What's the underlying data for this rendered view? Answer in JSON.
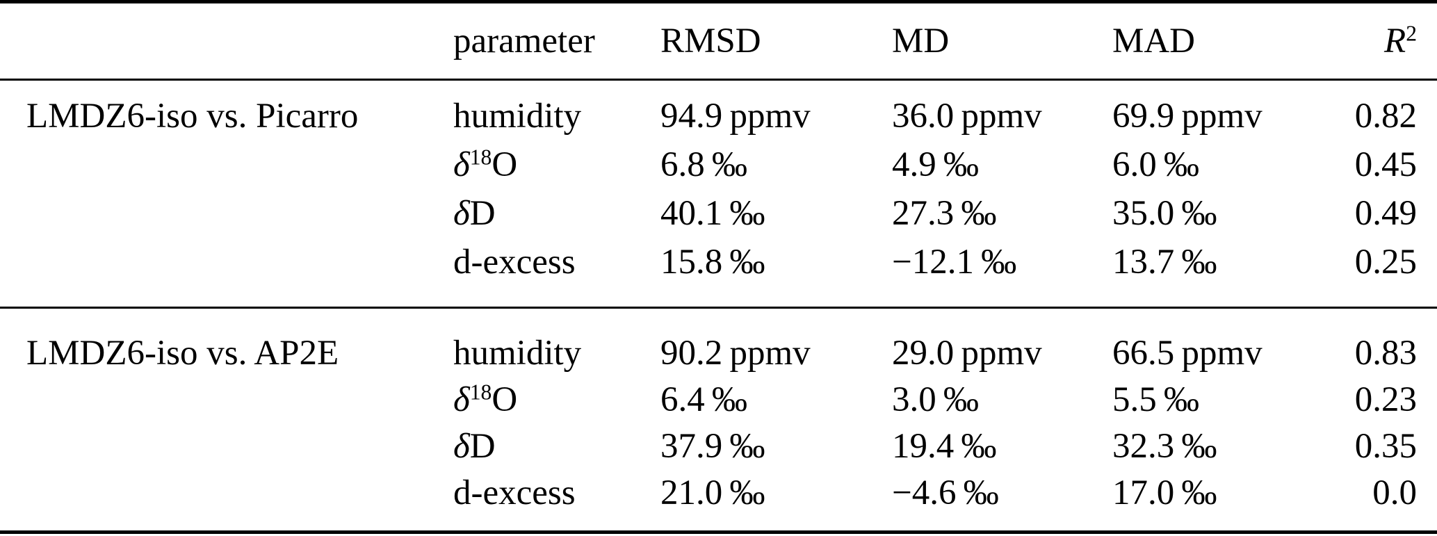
{
  "table": {
    "headers": {
      "param": "parameter",
      "rmsd": "RMSD",
      "md": "MD",
      "mad": "MAD",
      "r2_base": "R",
      "r2_sup": "2"
    },
    "groups": [
      {
        "label": "LMDZ6-iso vs. Picarro",
        "rows": [
          {
            "param_base": "humidity",
            "param_sup": "",
            "param_rest": "",
            "rmsd": "94.9 ppmv",
            "md": "36.0 ppmv",
            "mad": "69.9 ppmv",
            "r2": "0.82"
          },
          {
            "param_base": "δ",
            "param_sup": "18",
            "param_rest": "O",
            "rmsd": "6.8 ‰",
            "md": "4.9 ‰",
            "mad": "6.0 ‰",
            "r2": "0.45"
          },
          {
            "param_base": "δ",
            "param_sup": "",
            "param_rest": "D",
            "rmsd": "40.1 ‰",
            "md": "27.3 ‰",
            "mad": "35.0 ‰",
            "r2": "0.49"
          },
          {
            "param_base": "d-excess",
            "param_sup": "",
            "param_rest": "",
            "rmsd": "15.8 ‰",
            "md": "−12.1 ‰",
            "mad": "13.7 ‰",
            "r2": "0.25"
          }
        ]
      },
      {
        "label": "LMDZ6-iso vs. AP2E",
        "rows": [
          {
            "param_base": "humidity",
            "param_sup": "",
            "param_rest": "",
            "rmsd": "90.2 ppmv",
            "md": "29.0 ppmv",
            "mad": "66.5 ppmv",
            "r2": "0.83"
          },
          {
            "param_base": "δ",
            "param_sup": "18",
            "param_rest": "O",
            "rmsd": "6.4 ‰",
            "md": "3.0 ‰",
            "mad": "5.5 ‰",
            "r2": "0.23"
          },
          {
            "param_base": "δ",
            "param_sup": "",
            "param_rest": "D",
            "rmsd": "37.9 ‰",
            "md": "19.4 ‰",
            "mad": "32.3 ‰",
            "r2": "0.35"
          },
          {
            "param_base": "d-excess",
            "param_sup": "",
            "param_rest": "",
            "rmsd": "21.0 ‰",
            "md": "−4.6 ‰",
            "mad": "17.0 ‰",
            "r2": "0.0"
          }
        ]
      }
    ]
  }
}
